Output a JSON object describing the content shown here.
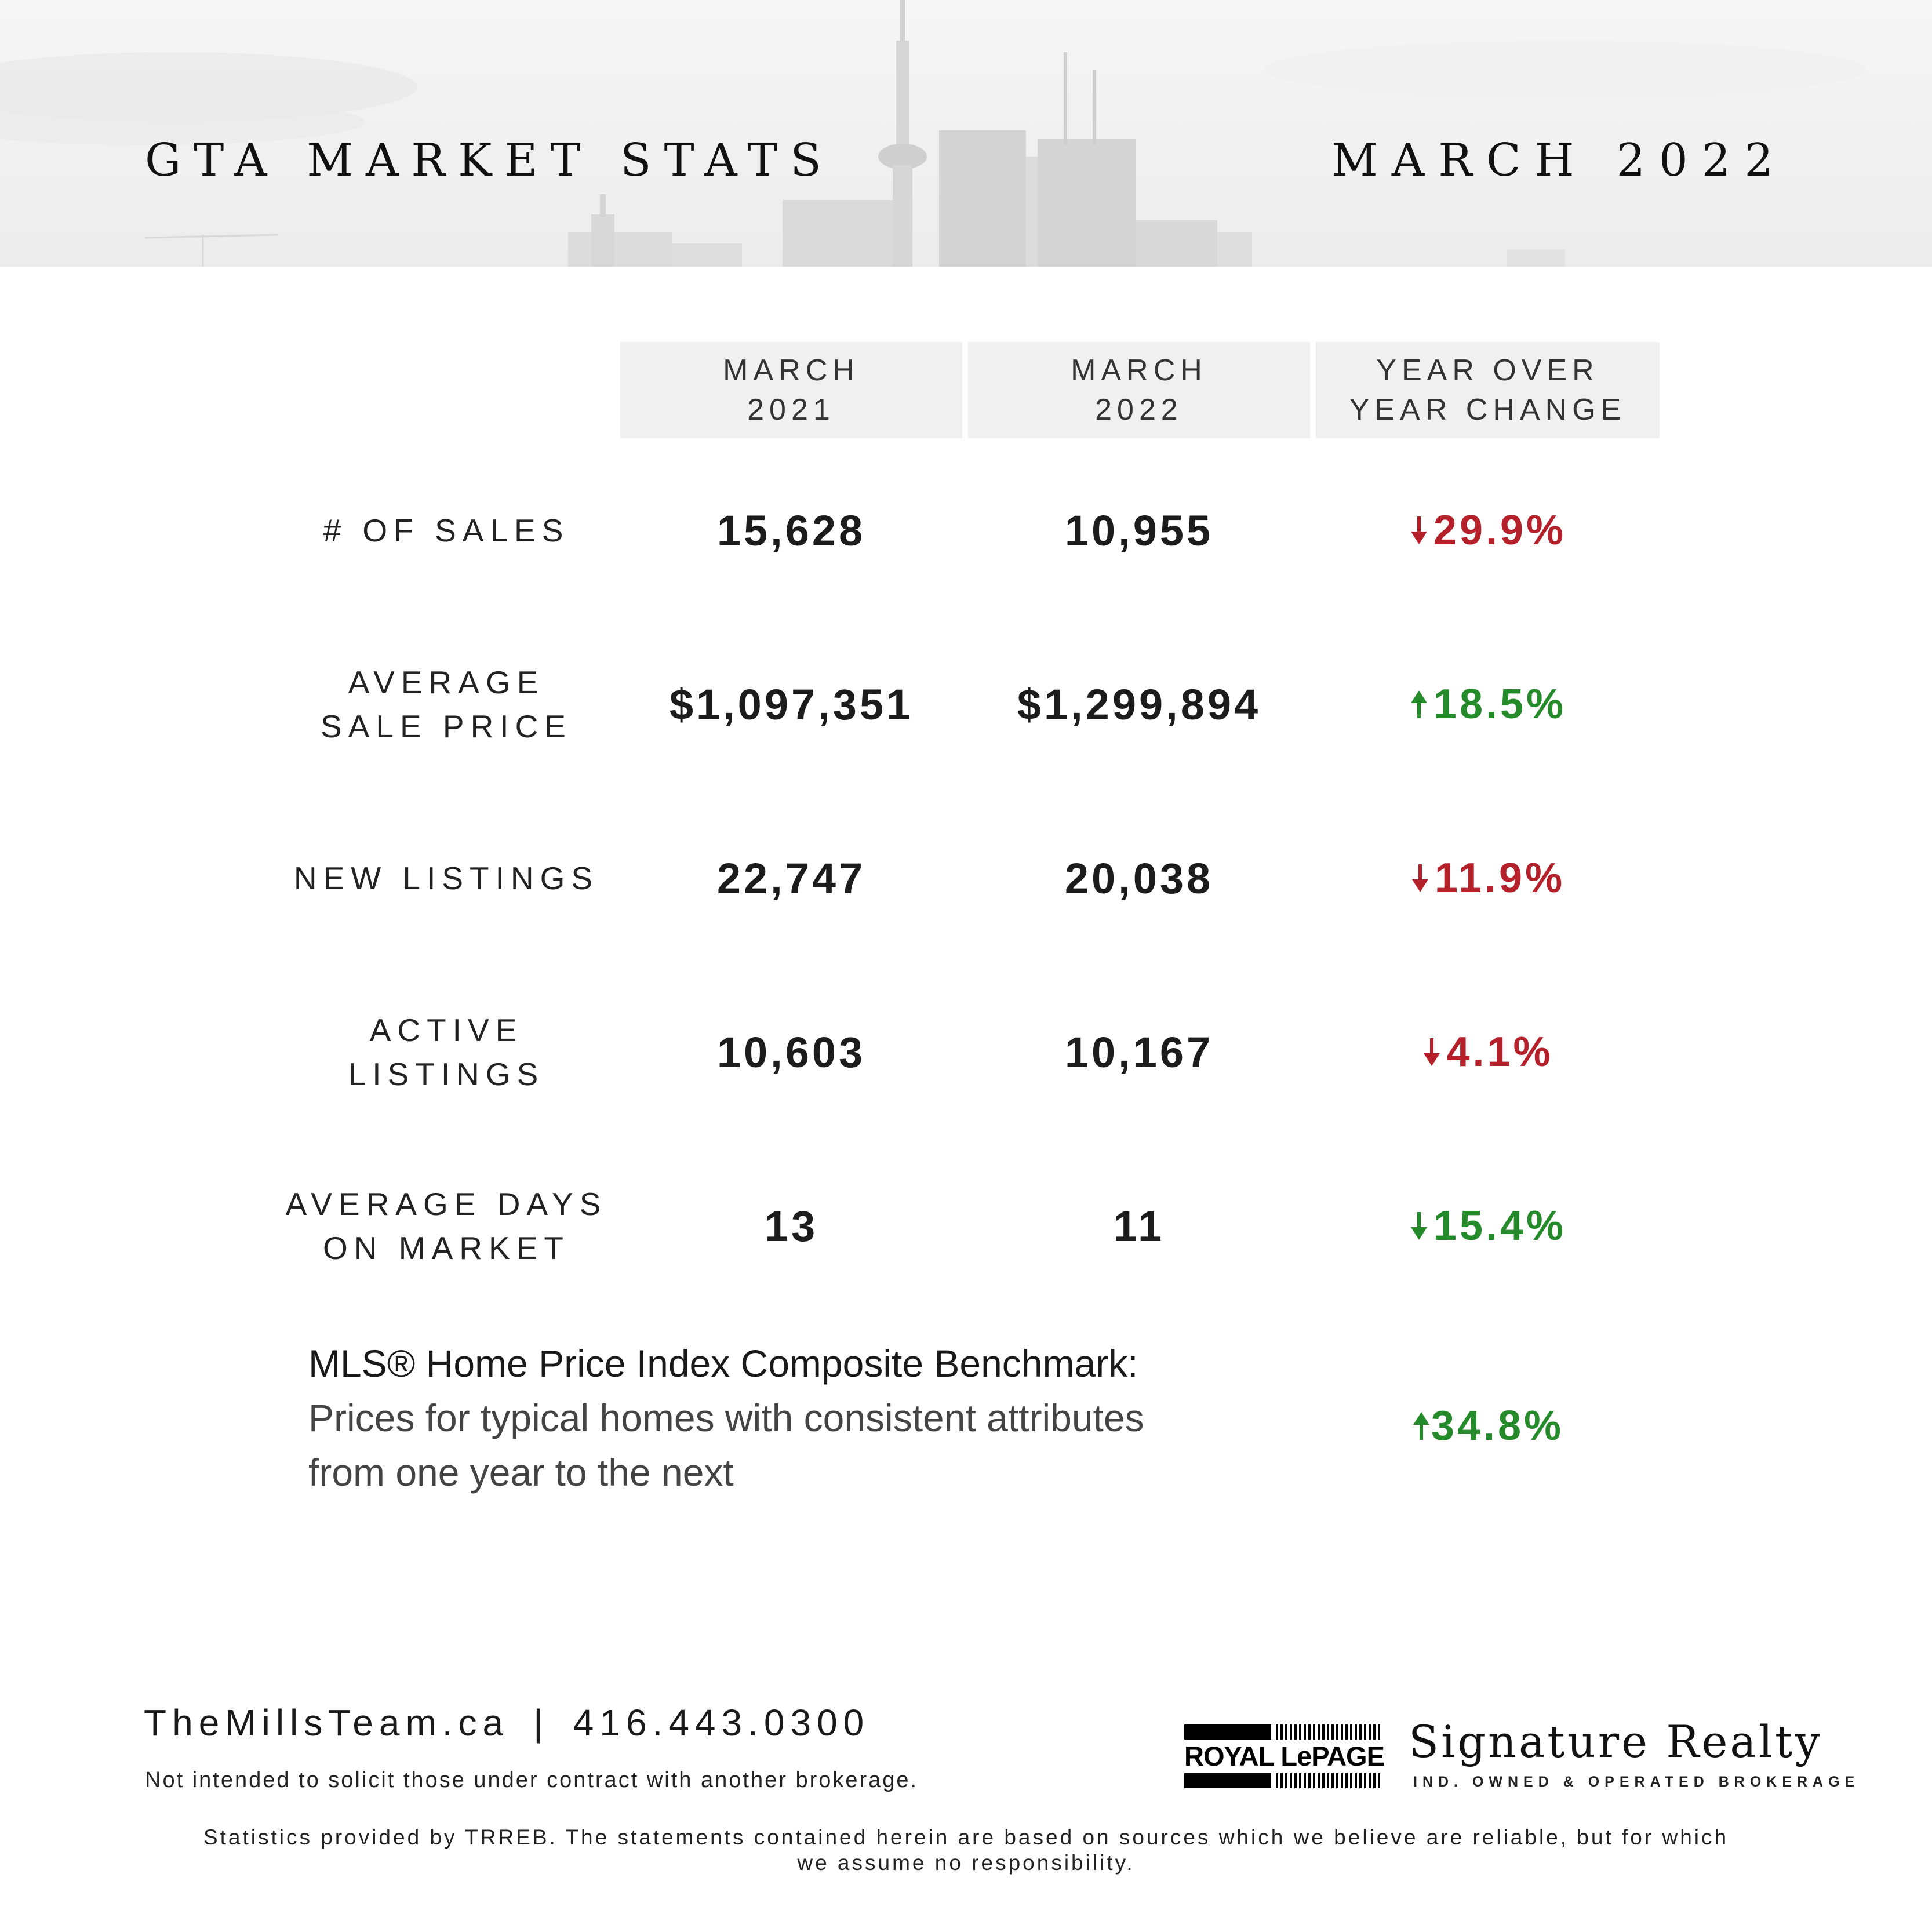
{
  "header": {
    "title_left": "GTA MARKET STATS",
    "title_right": "MARCH 2022"
  },
  "columns": [
    {
      "line1": "MARCH",
      "line2": "2021"
    },
    {
      "line1": "MARCH",
      "line2": "2022"
    },
    {
      "line1": "YEAR OVER",
      "line2": "YEAR CHANGE"
    }
  ],
  "rows": [
    {
      "label_line1": "# OF SALES",
      "label_line2": "",
      "v2021": "15,628",
      "v2022": "10,955",
      "change": "29.9%",
      "direction": "down",
      "color": "#b5212b"
    },
    {
      "label_line1": "AVERAGE",
      "label_line2": "SALE PRICE",
      "v2021": "$1,097,351",
      "v2022": "$1,299,894",
      "change": "18.5%",
      "direction": "up",
      "color": "#248a2a"
    },
    {
      "label_line1": "NEW LISTINGS",
      "label_line2": "",
      "v2021": "22,747",
      "v2022": "20,038",
      "change": "11.9%",
      "direction": "down",
      "color": "#b5212b"
    },
    {
      "label_line1": "ACTIVE",
      "label_line2": "LISTINGS",
      "v2021": "10,603",
      "v2022": "10,167",
      "change": "4.1%",
      "direction": "down",
      "color": "#b5212b"
    },
    {
      "label_line1": "AVERAGE DAYS",
      "label_line2": "ON MARKET",
      "v2021": "13",
      "v2022": "11",
      "change": "15.4%",
      "direction": "down",
      "color": "#248a2a"
    }
  ],
  "hpi": {
    "line1": "MLS® Home Price Index Composite Benchmark:",
    "line2": "Prices for typical homes with consistent attributes",
    "line3": "from one year to the next",
    "change": "34.8%",
    "direction": "up",
    "color": "#248a2a"
  },
  "footer": {
    "website": "TheMillsTeam.ca",
    "separator": "|",
    "phone": "416.443.0300",
    "disclaimer1": "Not intended to solicit those under contract with another brokerage.",
    "disclaimer2_line1": "Statistics provided by TRREB. The statements contained herein are based on sources which we believe are reliable, but for which",
    "disclaimer2_line2": "we assume no responsibility."
  },
  "brand": {
    "logo_text": "ROYAL LePAGE",
    "name": "Signature Realty",
    "subtitle": "IND. OWNED & OPERATED BROKERAGE"
  }
}
